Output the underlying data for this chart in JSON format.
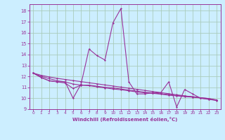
{
  "xlabel": "Windchill (Refroidissement éolien,°C)",
  "background_color": "#cceeff",
  "grid_color": "#aaccbb",
  "line_color": "#993399",
  "xlim": [
    -0.5,
    23.5
  ],
  "ylim": [
    9,
    18.6
  ],
  "yticks": [
    9,
    10,
    11,
    12,
    13,
    14,
    15,
    16,
    17,
    18
  ],
  "xticks": [
    0,
    1,
    2,
    3,
    4,
    5,
    6,
    7,
    8,
    9,
    10,
    11,
    12,
    13,
    14,
    15,
    16,
    17,
    18,
    19,
    20,
    21,
    22,
    23
  ],
  "series1": [
    12.3,
    11.9,
    11.6,
    11.5,
    11.5,
    10.0,
    11.3,
    14.5,
    13.9,
    13.5,
    16.9,
    18.2,
    11.5,
    10.4,
    10.4,
    10.5,
    10.5,
    11.5,
    9.2,
    10.8,
    10.4,
    10.0,
    9.9,
    9.8
  ],
  "series2": [
    12.3,
    11.9,
    11.6,
    11.5,
    11.4,
    10.9,
    11.2,
    11.2,
    11.1,
    11.0,
    10.95,
    10.85,
    10.75,
    10.65,
    10.55,
    10.5,
    10.4,
    10.35,
    10.25,
    10.2,
    10.15,
    10.05,
    9.98,
    9.85
  ],
  "series3": [
    12.3,
    12.0,
    11.8,
    11.6,
    11.5,
    11.3,
    11.2,
    11.15,
    11.05,
    10.95,
    10.85,
    10.78,
    10.68,
    10.58,
    10.5,
    10.45,
    10.38,
    10.28,
    10.22,
    10.15,
    10.1,
    10.05,
    9.98,
    9.82
  ],
  "series4": [
    12.3,
    12.1,
    11.95,
    11.82,
    11.72,
    11.62,
    11.52,
    11.42,
    11.32,
    11.22,
    11.12,
    11.02,
    10.92,
    10.82,
    10.72,
    10.62,
    10.52,
    10.42,
    10.32,
    10.22,
    10.12,
    10.02,
    9.92,
    9.82
  ]
}
